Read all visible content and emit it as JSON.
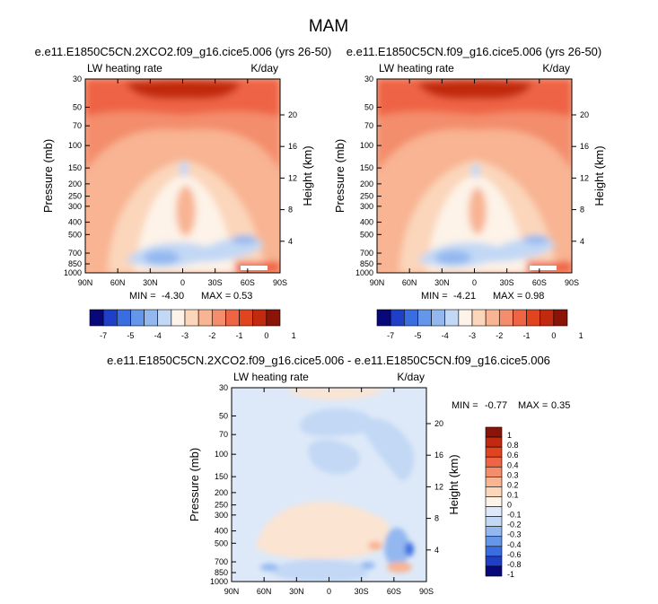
{
  "page_title": "MAM",
  "chart_data": [
    {
      "type": "heatmap",
      "title": "e.e11.E1850C5CN.2XCO2.f09_g16.cice5.006 (yrs 26-50)",
      "left_string": "LW heating rate",
      "right_string": "K/day",
      "ylabel": "Pressure (mb)",
      "ylabel_right": "Height (km)",
      "x_ticks": [
        "90N",
        "60N",
        "30N",
        "0",
        "30S",
        "60S",
        "90S"
      ],
      "y_ticks": [
        "30",
        "50",
        "70",
        "100",
        "150",
        "200",
        "250",
        "300",
        "400",
        "500",
        "700",
        "850",
        "1000"
      ],
      "y_ticks_right": [
        "20",
        "16",
        "12",
        "8",
        "4"
      ],
      "min_label": "MIN =",
      "min_value": "-4.30",
      "max_label": "MAX =",
      "max_value": "0.53"
    },
    {
      "type": "heatmap",
      "title": "e.e11.E1850C5CN.f09_g16.cice5.006 (yrs 26-50)",
      "left_string": "LW heating rate",
      "right_string": "K/day",
      "ylabel": "Pressure (mb)",
      "ylabel_right": "Height (km)",
      "x_ticks": [
        "90N",
        "60N",
        "30N",
        "0",
        "30S",
        "60S",
        "90S"
      ],
      "y_ticks": [
        "30",
        "50",
        "70",
        "100",
        "150",
        "200",
        "250",
        "300",
        "400",
        "500",
        "700",
        "850",
        "1000"
      ],
      "y_ticks_right": [
        "20",
        "16",
        "12",
        "8",
        "4"
      ],
      "min_label": "MIN =",
      "min_value": "-4.21",
      "max_label": "MAX =",
      "max_value": "0.98"
    },
    {
      "type": "heatmap",
      "title": "e.e11.E1850C5CN.2XCO2.f09_g16.cice5.006 - e.e11.E1850C5CN.f09_g16.cice5.006",
      "left_string": "LW heating rate",
      "right_string": "K/day",
      "ylabel": "Pressure (mb)",
      "ylabel_right": "Height (km)",
      "x_ticks": [
        "90N",
        "60N",
        "30N",
        "0",
        "30S",
        "60S",
        "90S"
      ],
      "y_ticks": [
        "30",
        "50",
        "70",
        "100",
        "150",
        "200",
        "250",
        "300",
        "400",
        "500",
        "700",
        "850",
        "1000"
      ],
      "y_ticks_right": [
        "20",
        "16",
        "12",
        "8",
        "4"
      ],
      "min_label": "MIN =",
      "min_value": "-0.77",
      "max_label": "MAX =",
      "max_value": "0.35"
    }
  ],
  "colorbar_top": {
    "labels": [
      "-7",
      "-5",
      "-4",
      "-3",
      "-2",
      "-1",
      "0",
      "1"
    ],
    "colors": [
      "#08087a",
      "#1f3fc7",
      "#3a6ee0",
      "#6496ea",
      "#93b8f0",
      "#c2d8f5",
      "#fdf3e8",
      "#fbd6bb",
      "#f8b493",
      "#f38d6c",
      "#ee6444",
      "#e24420",
      "#c22a10",
      "#8a1408"
    ]
  },
  "colorbar_diff": {
    "labels": [
      "1",
      "0.8",
      "0.6",
      "0.4",
      "0.3",
      "0.2",
      "0.1",
      "0",
      "-0.1",
      "-0.2",
      "-0.3",
      "-0.4",
      "-0.6",
      "-0.8",
      "-1"
    ],
    "colors": [
      "#8a1408",
      "#c22a10",
      "#e24420",
      "#ee6444",
      "#f38d6c",
      "#f8b493",
      "#fbd6bb",
      "#fdf3e8",
      "#dde9f8",
      "#c2d8f5",
      "#93b8f0",
      "#6496ea",
      "#3a6ee0",
      "#1f3fc7",
      "#08087a"
    ]
  }
}
